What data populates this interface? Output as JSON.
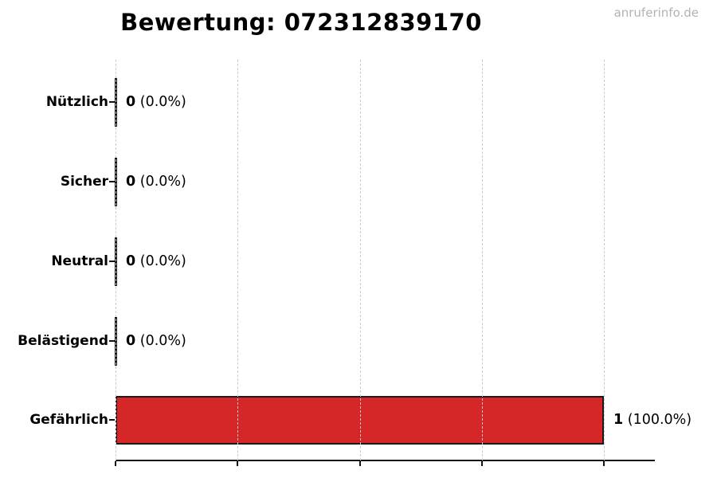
{
  "page": {
    "title": "Bewertung: 072312839170",
    "watermark": "anruferinfo.de"
  },
  "colors": {
    "bar_fill_red": "#d62728",
    "bar_edge": "#1a1a1a",
    "gridline": "#cccccc",
    "axis": "#111111",
    "watermark_gray": "#b3b3b3",
    "text": "#000000",
    "background": "#ffffff"
  },
  "chart_data": {
    "type": "bar",
    "orientation": "horizontal",
    "title": "Bewertung: 072312839170",
    "categories": [
      "Nützlich",
      "Sicher",
      "Neutral",
      "Belästigend",
      "Gefährlich"
    ],
    "values": [
      0,
      0,
      0,
      0,
      1
    ],
    "percent_labels": [
      "0.0%",
      "0.0%",
      "0.0%",
      "0.0%",
      "100.0%"
    ],
    "value_label_texts": [
      "0 (0.0%)",
      "0 (0.0%)",
      "0 (0.0%)",
      "0 (0.0%)",
      "1 (100.0%)"
    ],
    "bar_colors": [
      "none",
      "none",
      "none",
      "none",
      "#d62728"
    ],
    "xlim": [
      0,
      1.1
    ],
    "xticks": [
      0,
      0.25,
      0.5,
      0.75,
      1.0
    ],
    "xtick_labels": [
      "",
      "",
      "",
      "",
      ""
    ],
    "grid": "vertical-dashed",
    "grid_above_bars": true,
    "legend": "none"
  }
}
